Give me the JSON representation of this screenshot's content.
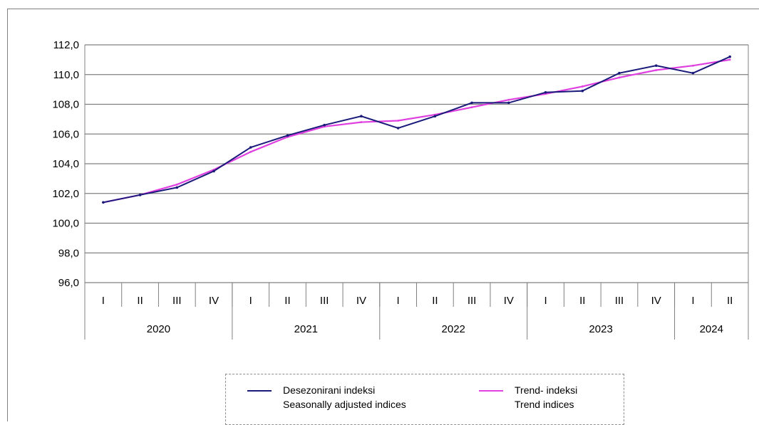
{
  "chart_data": {
    "type": "line",
    "ylim": [
      96.0,
      112.0
    ],
    "yticks": [
      "96,0",
      "98,0",
      "100,0",
      "102,0",
      "104,0",
      "106,0",
      "108,0",
      "110,0",
      "112,0"
    ],
    "quarters": [
      "I",
      "II",
      "III",
      "IV",
      "I",
      "II",
      "III",
      "IV",
      "I",
      "II",
      "III",
      "IV",
      "I",
      "II",
      "III",
      "IV",
      "I",
      "II"
    ],
    "years": [
      {
        "label": "2020",
        "quarters": 4
      },
      {
        "label": "2021",
        "quarters": 4
      },
      {
        "label": "2022",
        "quarters": 4
      },
      {
        "label": "2023",
        "quarters": 4
      },
      {
        "label": "2024",
        "quarters": 2
      }
    ],
    "series": [
      {
        "name": "Desezonirani indeksi",
        "name_en": "Seasonally adjusted indices",
        "color": "#1a1a7a",
        "values": [
          101.4,
          101.9,
          102.4,
          103.5,
          105.1,
          105.9,
          106.6,
          107.2,
          106.4,
          107.2,
          108.1,
          108.1,
          108.8,
          108.9,
          110.1,
          110.6,
          110.1,
          111.2
        ]
      },
      {
        "name": "Trend- indeksi",
        "name_en": "Trend indices",
        "color": "#e040e0",
        "values": [
          101.4,
          101.9,
          102.6,
          103.6,
          104.8,
          105.8,
          106.5,
          106.8,
          106.9,
          107.3,
          107.8,
          108.3,
          108.7,
          109.2,
          109.8,
          110.3,
          110.6,
          111.0
        ]
      }
    ],
    "grid": true,
    "legend_position": "bottom"
  }
}
